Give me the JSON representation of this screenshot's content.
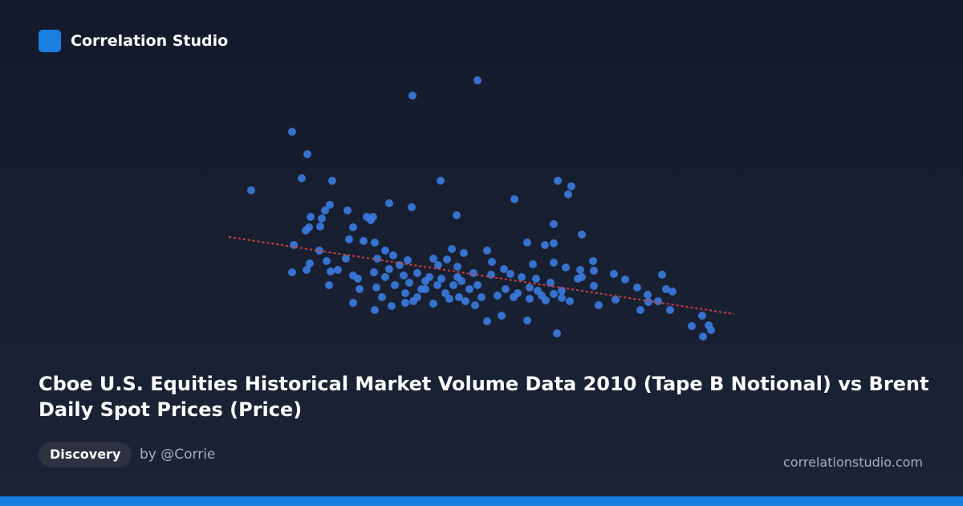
{
  "brand": "Correlation Studio",
  "chart_data": {
    "type": "scatter",
    "title": "Cboe U.S. Equities Historical Market Volume Data 2010 (Tape B Notional) vs Brent Daily Spot Prices (Price)",
    "xlim": [
      0,
      640
    ],
    "ylim": [
      0,
      340
    ],
    "series": [
      {
        "color": "#3b7be0",
        "x": [
          33,
          84,
          103,
          96,
          134,
          234,
          315,
          269,
          415,
          432,
          428,
          361,
          205,
          233,
          289,
          153,
          131,
          125,
          107,
          121,
          105,
          101,
          119,
          177,
          185,
          182,
          410,
          445,
          160,
          155,
          173,
          187,
          86,
          118,
          151,
          190,
          200,
          210,
          228,
          260,
          283,
          298,
          327,
          377,
          399,
          410,
          459,
          410,
          384,
          425,
          443,
          485,
          499,
          545,
          84,
          106,
          127,
          102,
          132,
          141,
          160,
          166,
          186,
          200,
          130,
          168,
          189,
          212,
          230,
          250,
          270,
          290,
          310,
          332,
          356,
          370,
          388,
          406,
          440,
          460,
          514,
          527,
          550,
          558,
          160,
          187,
          208,
          225,
          240,
          260,
          280,
          300,
          320,
          340,
          360,
          380,
          400,
          420,
          430,
          466,
          487,
          518,
          528,
          540,
          555,
          327,
          345,
          377,
          414,
          582,
          595,
          603,
          606,
          596,
          240,
          250,
          265,
          275,
          285,
          295,
          305,
          315,
          225,
          235,
          245,
          255,
          266,
          218,
          205,
          196,
          350,
          365,
          380,
          390,
          395,
          410,
          420,
          333,
          348,
          290,
          277,
          223,
          312,
          292,
          460,
          445
        ],
        "values": [
          193,
          266,
          238,
          208,
          205,
          311,
          330,
          205,
          205,
          198,
          188,
          182,
          177,
          172,
          162,
          168,
          175,
          168,
          160,
          158,
          147,
          143,
          148,
          160,
          160,
          156,
          151,
          138,
          147,
          132,
          130,
          128,
          125,
          118,
          108,
          108,
          118,
          112,
          106,
          108,
          120,
          115,
          118,
          128,
          125,
          127,
          105,
          103,
          101,
          97,
          94,
          89,
          82,
          88,
          91,
          102,
          105,
          94,
          92,
          94,
          87,
          83,
          91,
          85,
          75,
          70,
          72,
          75,
          78,
          80,
          83,
          85,
          90,
          88,
          89,
          85,
          83,
          78,
          83,
          74,
          72,
          63,
          70,
          67,
          53,
          44,
          49,
          53,
          60,
          52,
          58,
          55,
          60,
          62,
          60,
          58,
          56,
          59,
          55,
          50,
          57,
          44,
          54,
          55,
          44,
          30,
          37,
          31,
          15,
          24,
          37,
          25,
          19,
          11,
          90,
          70,
          75,
          65,
          75,
          80,
          70,
          75,
          65,
          55,
          70,
          85,
          100,
          100,
          95,
          60,
          70,
          65,
          72,
          68,
          62,
          64,
          68,
          104,
          95,
          98,
          107,
          87,
          50,
          60,
          93,
          85
        ]
      }
    ],
    "trendline": {
      "color": "#d0413e",
      "x": [
        5,
        635
      ],
      "values": [
        135,
        39
      ]
    }
  },
  "tag": "Discovery",
  "author": "by @Corrie",
  "site": "correlationstudio.com"
}
